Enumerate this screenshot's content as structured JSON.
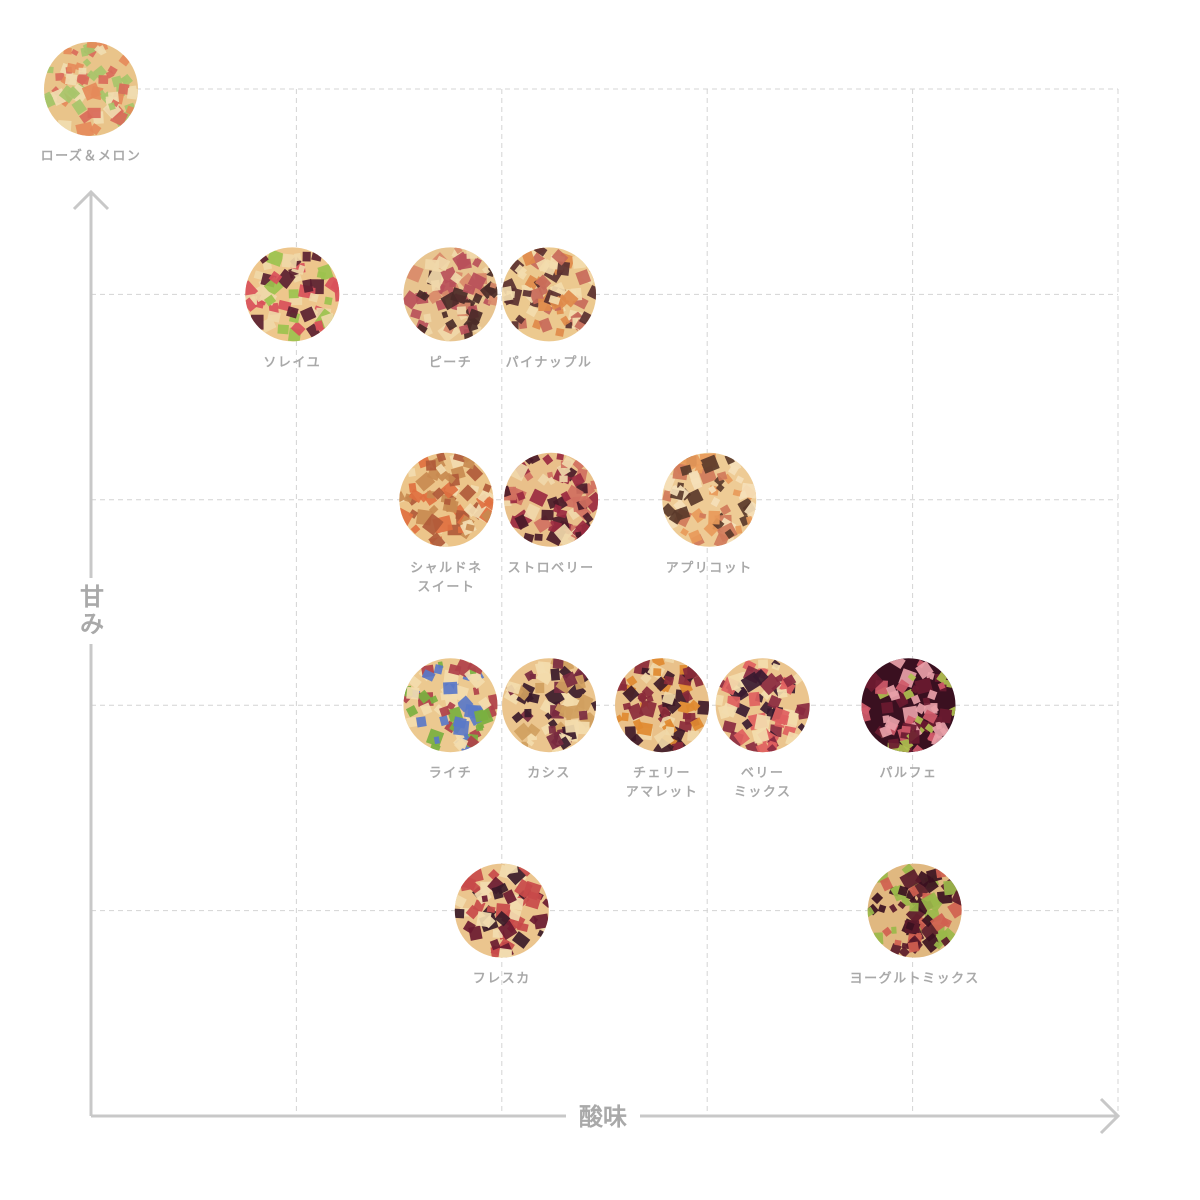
{
  "chart_data": {
    "type": "scatter",
    "xlabel": "酸味",
    "ylabel": "甘み",
    "xlim": [
      0,
      5
    ],
    "ylim": [
      0,
      5
    ],
    "grid": true,
    "points": [
      {
        "name": "ローズ＆メロン",
        "lines": [
          "ローズ＆メロン"
        ],
        "x": 0.0,
        "y": 5.0,
        "colors": [
          "#e9c48a",
          "#d96a5a",
          "#a7c46a",
          "#f0dcb0",
          "#e58a5a"
        ]
      },
      {
        "name": "ソレイユ",
        "lines": [
          "ソレイユ"
        ],
        "x": 0.98,
        "y": 4.0,
        "colors": [
          "#eec68c",
          "#d9505a",
          "#9cc24e",
          "#5a2030",
          "#f0d8a8"
        ]
      },
      {
        "name": "ピーチ",
        "lines": [
          "ピーチ"
        ],
        "x": 1.75,
        "y": 4.0,
        "colors": [
          "#e8c590",
          "#b8505a",
          "#f0d8aa",
          "#4a2a28",
          "#d98a6a"
        ]
      },
      {
        "name": "パイナップル",
        "lines": [
          "パイナップル"
        ],
        "x": 2.23,
        "y": 4.0,
        "colors": [
          "#ecc98f",
          "#e08a4a",
          "#f3dcae",
          "#5a3030",
          "#c86a5a"
        ]
      },
      {
        "name": "シャルドネスイート",
        "lines": [
          "シャルドネ",
          "スイート"
        ],
        "x": 1.73,
        "y": 3.0,
        "colors": [
          "#ecc58a",
          "#e07040",
          "#f2dbb0",
          "#b05a3a",
          "#c88a50"
        ]
      },
      {
        "name": "ストロベリー",
        "lines": [
          "ストロベリー"
        ],
        "x": 2.24,
        "y": 3.0,
        "colors": [
          "#e9c08a",
          "#9a2a40",
          "#f0d8aa",
          "#4a1a28",
          "#d07060"
        ]
      },
      {
        "name": "アプリコット",
        "lines": [
          "アプリコット"
        ],
        "x": 3.01,
        "y": 3.0,
        "colors": [
          "#eecb95",
          "#e89a5a",
          "#f5e0b8",
          "#5a3a2a",
          "#d07a5a"
        ]
      },
      {
        "name": "ライチ",
        "lines": [
          "ライチ"
        ],
        "x": 1.75,
        "y": 2.0,
        "colors": [
          "#ecc990",
          "#7ab040",
          "#5a78c8",
          "#b0404a",
          "#f3dcae"
        ]
      },
      {
        "name": "カシス",
        "lines": [
          "カシス"
        ],
        "x": 2.23,
        "y": 2.0,
        "colors": [
          "#ebc58e",
          "#3a1a2a",
          "#7a2a40",
          "#f3dcae",
          "#d0a060"
        ]
      },
      {
        "name": "チェリーアマレット",
        "lines": [
          "チェリー",
          "アマレット"
        ],
        "x": 2.78,
        "y": 2.0,
        "colors": [
          "#e9c18a",
          "#3e1a28",
          "#e08a30",
          "#8a2a3a",
          "#f0d8a8"
        ]
      },
      {
        "name": "ベリーミックス",
        "lines": [
          "ベリー",
          "ミックス"
        ],
        "x": 3.27,
        "y": 2.0,
        "colors": [
          "#ebc58e",
          "#e06060",
          "#3a1a30",
          "#8a2a40",
          "#f3dcae"
        ]
      },
      {
        "name": "パルフェ",
        "lines": [
          "パルフェ"
        ],
        "x": 3.98,
        "y": 2.0,
        "colors": [
          "#3a1020",
          "#6a1a30",
          "#d05a6a",
          "#b0c050",
          "#e8a0a8"
        ]
      },
      {
        "name": "フレスカ",
        "lines": [
          "フレスカ"
        ],
        "x": 2.0,
        "y": 1.0,
        "colors": [
          "#ebc58e",
          "#6a1a30",
          "#f2dcb0",
          "#c84a4a",
          "#3a1a28"
        ]
      },
      {
        "name": "ヨーグルトミックス",
        "lines": [
          "ヨーグルトミックス"
        ],
        "x": 4.01,
        "y": 1.0,
        "colors": [
          "#e0b880",
          "#5a1a2a",
          "#9ab84a",
          "#d06050",
          "#3a1020"
        ]
      }
    ]
  }
}
